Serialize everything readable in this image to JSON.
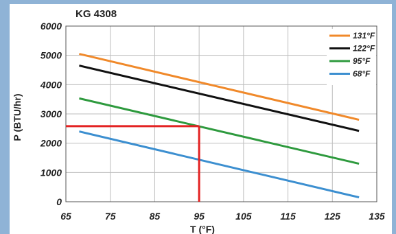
{
  "chart_data": {
    "type": "line",
    "title": "KG 4308",
    "xlabel": "T (°F)",
    "ylabel": "P (BTU/hr)",
    "xlim": [
      65,
      135
    ],
    "ylim": [
      0,
      6000
    ],
    "xticks": [
      "65",
      "75",
      "85",
      "95",
      "105",
      "115",
      "125",
      "135"
    ],
    "yticks": [
      "0",
      "1000",
      "2000",
      "3000",
      "4000",
      "5000",
      "6000"
    ],
    "grid": true,
    "legend": "top-right",
    "series": [
      {
        "name": "131°F",
        "color": "#f0892a",
        "x": [
          68,
          131
        ],
        "y": [
          5050,
          2800
        ]
      },
      {
        "name": "122°F",
        "color": "#111111",
        "x": [
          68,
          131
        ],
        "y": [
          4650,
          2420
        ]
      },
      {
        "name": "95°F",
        "color": "#2e9a3e",
        "x": [
          68,
          131
        ],
        "y": [
          3530,
          1300
        ]
      },
      {
        "name": "68°F",
        "color": "#3c8fd0",
        "x": [
          68,
          131
        ],
        "y": [
          2400,
          150
        ]
      }
    ],
    "annotation": {
      "color": "#e32222",
      "x": 95,
      "y": 2580
    }
  }
}
